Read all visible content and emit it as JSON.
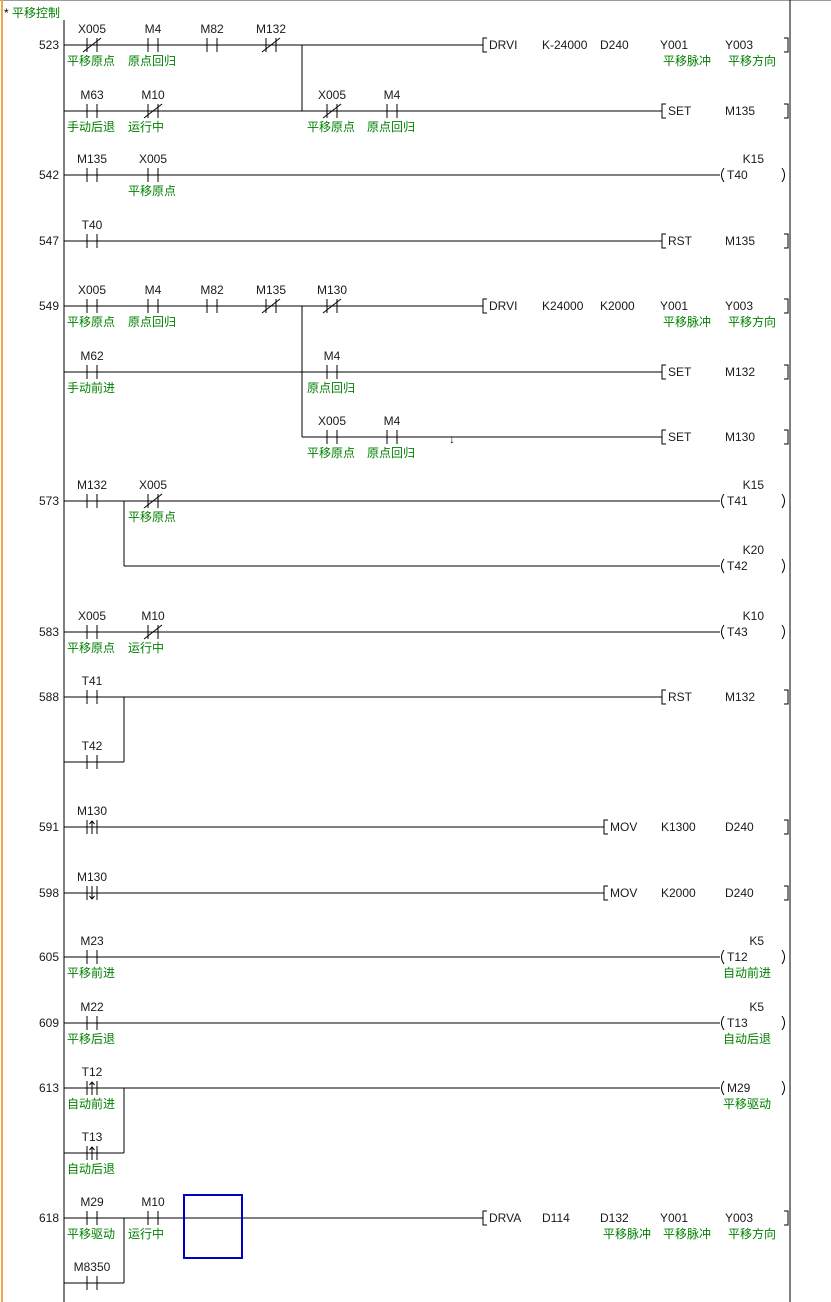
{
  "title": "平移控制",
  "title_marker": "*",
  "colors": {
    "comment": "#008000",
    "cursor": "#0000c0",
    "wire": "#000000",
    "tab_edge": "#f0a850"
  },
  "rungs": [
    {
      "step": "523",
      "contacts": [
        {
          "device": "X005",
          "comment": "平移原点",
          "kind": "nc"
        },
        {
          "device": "M4",
          "comment": "原点回归",
          "kind": "no"
        },
        {
          "device": "M82",
          "comment": "",
          "kind": "no"
        },
        {
          "device": "M132",
          "comment": "",
          "kind": "nc"
        },
        {
          "device": "M63",
          "comment": "手动后退",
          "kind": "no"
        },
        {
          "device": "M10",
          "comment": "运行中",
          "kind": "nc"
        },
        {
          "device": "X005",
          "comment": "平移原点",
          "kind": "nc"
        },
        {
          "device": "M4",
          "comment": "原点回归",
          "kind": "no"
        }
      ],
      "outputs": [
        {
          "type": "instr",
          "op": "DRVI",
          "operands": [
            {
              "value": "K-24000",
              "comment": ""
            },
            {
              "value": "D240",
              "comment": ""
            },
            {
              "value": "Y001",
              "comment": "平移脉冲"
            },
            {
              "value": "Y003",
              "comment": "平移方向"
            }
          ]
        },
        {
          "type": "instr",
          "op": "SET",
          "operands": [
            {
              "value": "M135",
              "comment": ""
            }
          ]
        }
      ]
    },
    {
      "step": "542",
      "contacts": [
        {
          "device": "M135",
          "comment": "",
          "kind": "no"
        },
        {
          "device": "X005",
          "comment": "平移原点",
          "kind": "no"
        }
      ],
      "outputs": [
        {
          "type": "coil",
          "device": "T40",
          "constant": "K15",
          "comment": ""
        }
      ]
    },
    {
      "step": "547",
      "contacts": [
        {
          "device": "T40",
          "comment": "",
          "kind": "no"
        }
      ],
      "outputs": [
        {
          "type": "instr",
          "op": "RST",
          "operands": [
            {
              "value": "M135",
              "comment": ""
            }
          ]
        }
      ]
    },
    {
      "step": "549",
      "contacts": [
        {
          "device": "X005",
          "comment": "平移原点",
          "kind": "no"
        },
        {
          "device": "M4",
          "comment": "原点回归",
          "kind": "no"
        },
        {
          "device": "M82",
          "comment": "",
          "kind": "no"
        },
        {
          "device": "M135",
          "comment": "",
          "kind": "nc"
        },
        {
          "device": "M130",
          "comment": "",
          "kind": "nc"
        },
        {
          "device": "M62",
          "comment": "手动前进",
          "kind": "no"
        },
        {
          "device": "M4",
          "comment": "原点回归",
          "kind": "no"
        },
        {
          "device": "X005",
          "comment": "平移原点",
          "kind": "no"
        },
        {
          "device": "M4",
          "comment": "原点回归",
          "kind": "no"
        }
      ],
      "marker": "↓",
      "outputs": [
        {
          "type": "instr",
          "op": "DRVI",
          "operands": [
            {
              "value": "K24000",
              "comment": ""
            },
            {
              "value": "K2000",
              "comment": ""
            },
            {
              "value": "Y001",
              "comment": "平移脉冲"
            },
            {
              "value": "Y003",
              "comment": "平移方向"
            }
          ]
        },
        {
          "type": "instr",
          "op": "SET",
          "operands": [
            {
              "value": "M132",
              "comment": ""
            }
          ]
        },
        {
          "type": "instr",
          "op": "SET",
          "operands": [
            {
              "value": "M130",
              "comment": ""
            }
          ]
        }
      ]
    },
    {
      "step": "573",
      "contacts": [
        {
          "device": "M132",
          "comment": "",
          "kind": "no"
        },
        {
          "device": "X005",
          "comment": "平移原点",
          "kind": "nc"
        }
      ],
      "outputs": [
        {
          "type": "coil",
          "device": "T41",
          "constant": "K15",
          "comment": ""
        },
        {
          "type": "coil",
          "device": "T42",
          "constant": "K20",
          "comment": ""
        }
      ]
    },
    {
      "step": "583",
      "contacts": [
        {
          "device": "X005",
          "comment": "平移原点",
          "kind": "no"
        },
        {
          "device": "M10",
          "comment": "运行中",
          "kind": "nc"
        }
      ],
      "outputs": [
        {
          "type": "coil",
          "device": "T43",
          "constant": "K10",
          "comment": ""
        }
      ]
    },
    {
      "step": "588",
      "contacts": [
        {
          "device": "T41",
          "comment": "",
          "kind": "no"
        },
        {
          "device": "T42",
          "comment": "",
          "kind": "no"
        }
      ],
      "outputs": [
        {
          "type": "instr",
          "op": "RST",
          "operands": [
            {
              "value": "M132",
              "comment": ""
            }
          ]
        }
      ]
    },
    {
      "step": "591",
      "contacts": [
        {
          "device": "M130",
          "comment": "",
          "kind": "rise"
        }
      ],
      "outputs": [
        {
          "type": "instr",
          "op": "MOV",
          "operands": [
            {
              "value": "K1300",
              "comment": ""
            },
            {
              "value": "D240",
              "comment": ""
            }
          ]
        }
      ]
    },
    {
      "step": "598",
      "contacts": [
        {
          "device": "M130",
          "comment": "",
          "kind": "fall"
        }
      ],
      "outputs": [
        {
          "type": "instr",
          "op": "MOV",
          "operands": [
            {
              "value": "K2000",
              "comment": ""
            },
            {
              "value": "D240",
              "comment": ""
            }
          ]
        }
      ]
    },
    {
      "step": "605",
      "contacts": [
        {
          "device": "M23",
          "comment": "平移前进",
          "kind": "no"
        }
      ],
      "outputs": [
        {
          "type": "coil",
          "device": "T12",
          "constant": "K5",
          "comment": "自动前进"
        }
      ]
    },
    {
      "step": "609",
      "contacts": [
        {
          "device": "M22",
          "comment": "平移后退",
          "kind": "no"
        }
      ],
      "outputs": [
        {
          "type": "coil",
          "device": "T13",
          "constant": "K5",
          "comment": "自动后退"
        }
      ]
    },
    {
      "step": "613",
      "contacts": [
        {
          "device": "T12",
          "comment": "自动前进",
          "kind": "rise"
        },
        {
          "device": "T13",
          "comment": "自动后退",
          "kind": "rise"
        }
      ],
      "outputs": [
        {
          "type": "coil",
          "device": "M29",
          "constant": "",
          "comment": "平移驱动"
        }
      ]
    },
    {
      "step": "618",
      "contacts": [
        {
          "device": "M29",
          "comment": "平移驱动",
          "kind": "no"
        },
        {
          "device": "M10",
          "comment": "运行中",
          "kind": "no"
        },
        {
          "device": "M8350",
          "comment": "",
          "kind": "no"
        }
      ],
      "outputs": [
        {
          "type": "instr",
          "op": "DRVA",
          "operands": [
            {
              "value": "D114",
              "comment": ""
            },
            {
              "value": "D132",
              "comment": "平移脉冲"
            },
            {
              "value": "Y001",
              "comment": "平移脉冲"
            },
            {
              "value": "Y003",
              "comment": "平移方向"
            }
          ]
        }
      ]
    }
  ]
}
